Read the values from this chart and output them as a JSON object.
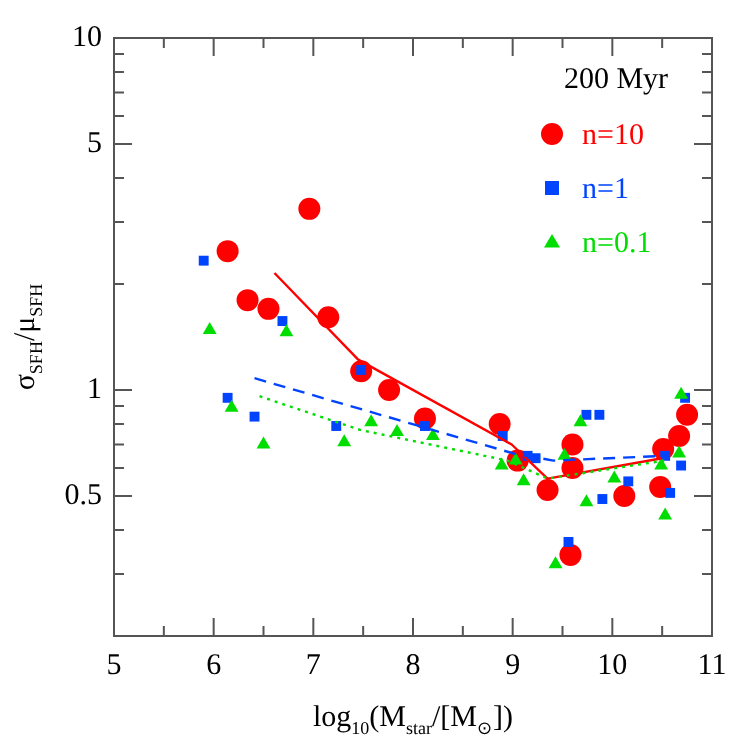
{
  "chart_data": {
    "type": "scatter",
    "xlabel": "log$_{10}$(M$_{star}$/[M$_{⊙}$])",
    "ylabel": "σ$_{SFH}$/μ$_{SFH}$",
    "legend_title": "200 Myr",
    "legend": "top right",
    "log": "y",
    "grid": false,
    "xlim": [
      5,
      11
    ],
    "xticks": [
      5,
      {
        "value": 5.5,
        "label": null
      },
      6,
      {
        "value": 6.5,
        "label": null
      },
      7,
      {
        "value": 7.5,
        "label": null
      },
      8,
      {
        "value": 8.5,
        "label": null
      },
      9,
      {
        "value": 9.5,
        "label": null
      },
      10,
      {
        "value": 10.5,
        "label": null
      },
      11
    ],
    "ylim": [
      0.2,
      10
    ],
    "yticks": [
      {
        "value": 0.3,
        "label": null
      },
      {
        "value": 0.4,
        "label": null
      },
      0.5,
      {
        "value": 0.6,
        "label": null
      },
      {
        "value": 0.7,
        "label": null
      },
      {
        "value": 0.8,
        "label": null
      },
      {
        "value": 0.9,
        "label": null
      },
      1,
      {
        "value": 2,
        "label": null
      },
      {
        "value": 3,
        "label": null
      },
      {
        "value": 4,
        "label": null
      },
      5,
      {
        "value": 6,
        "label": null
      },
      {
        "value": 7,
        "label": null
      },
      {
        "value": 8,
        "label": null
      },
      {
        "value": 9,
        "label": null
      },
      10
    ],
    "series": [
      {
        "name": "n=10",
        "marker": "circle",
        "color": "#ff0000",
        "x": [
          6.14,
          6.34,
          6.55,
          6.96,
          7.15,
          7.48,
          7.76,
          8.12,
          8.87,
          9.05,
          9.35,
          9.58,
          9.6,
          9.6,
          10.12,
          10.48,
          10.51,
          10.67,
          10.75
        ],
        "values": [
          2.48,
          1.8,
          1.7,
          3.27,
          1.61,
          1.13,
          1.0,
          0.83,
          0.8,
          0.63,
          0.52,
          0.34,
          0.7,
          0.6,
          0.5,
          0.53,
          0.68,
          0.74,
          0.85
        ]
      },
      {
        "name": "n=1",
        "marker": "square",
        "color": "#0044ff",
        "x": [
          5.9,
          6.14,
          6.41,
          6.69,
          7.23,
          7.48,
          8.12,
          8.9,
          9.15,
          9.23,
          9.56,
          9.74,
          9.87,
          9.9,
          10.16,
          10.53,
          10.58,
          10.69,
          10.73
        ],
        "values": [
          2.33,
          0.95,
          0.84,
          1.57,
          0.79,
          1.14,
          0.79,
          0.74,
          0.65,
          0.64,
          0.37,
          0.85,
          0.85,
          0.49,
          0.55,
          0.65,
          0.51,
          0.61,
          0.95
        ]
      },
      {
        "name": "n=0.1",
        "marker": "triangle",
        "color": "#00dd00",
        "x": [
          5.96,
          6.18,
          6.5,
          6.73,
          7.31,
          7.58,
          7.84,
          8.2,
          8.89,
          9.03,
          9.11,
          9.43,
          9.52,
          9.68,
          9.74,
          10.02,
          10.49,
          10.53,
          10.67,
          10.69
        ],
        "values": [
          1.48,
          0.89,
          0.7,
          1.46,
          0.71,
          0.81,
          0.76,
          0.74,
          0.61,
          0.63,
          0.55,
          0.32,
          0.65,
          0.81,
          0.48,
          0.56,
          0.61,
          0.44,
          0.66,
          0.97
        ]
      },
      {
        "type": "line",
        "line_style": "solid",
        "marker": "none",
        "color": "#ff0000",
        "x": [
          6.61,
          7.45,
          8.99,
          9.35,
          10.5
        ],
        "values": [
          2.15,
          1.22,
          0.7,
          0.56,
          0.64
        ]
      },
      {
        "type": "line",
        "line_style": "dashed",
        "marker": "none",
        "color": "#0044ff",
        "x": [
          6.41,
          9.01,
          9.41,
          10.52
        ],
        "values": [
          1.08,
          0.66,
          0.63,
          0.65
        ]
      },
      {
        "type": "line",
        "line_style": "dotted",
        "marker": "none",
        "color": "#00dd00",
        "x": [
          6.46,
          7.47,
          8.95,
          9.35,
          10.52
        ],
        "values": [
          0.96,
          0.77,
          0.63,
          0.56,
          0.63
        ]
      }
    ]
  }
}
